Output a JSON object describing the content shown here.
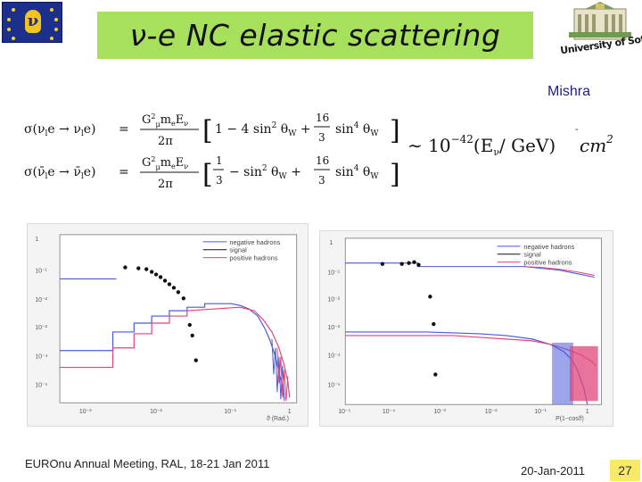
{
  "slide": {
    "title": "ν-e NC elastic scattering",
    "author": "Mishra",
    "university_logo_text": "University of Sofia",
    "footer_event": "EUROnu Annual Meeting, RAL, 18-21 Jan 2011",
    "footer_date": "20-Jan-2011",
    "page_number": "27"
  },
  "colors": {
    "title_bg": "#a7e05b",
    "eu_blue": "#1d2f8c",
    "eu_gold": "#f3c51a",
    "author": "#1d1d8c",
    "page_bg": "#f6ea66",
    "negative_hadrons": "#4a5bd8",
    "signal": "#111111",
    "positive_hadrons": "#e0457a"
  },
  "plots": {
    "legend": [
      "negative hadrons",
      "signal",
      "positive hadrons"
    ],
    "left": {
      "y_ticks": [
        "1",
        "10⁻¹",
        "10⁻²",
        "10⁻³",
        "10⁻⁴",
        "10⁻⁵"
      ],
      "x_ticks": [
        "10⁻³",
        "10⁻²",
        "10⁻¹",
        "1"
      ],
      "x_label": "ϑ (Rad.)"
    },
    "right": {
      "y_ticks": [
        "1",
        "10⁻¹",
        "10⁻²",
        "10⁻³",
        "10⁻⁴",
        "10⁻⁵"
      ],
      "x_ticks": [
        "10⁻⁵",
        "10⁻⁴",
        "10⁻³",
        "10⁻²",
        "10⁻¹",
        "1"
      ],
      "x_label": "P(1−cosϑ)"
    }
  }
}
